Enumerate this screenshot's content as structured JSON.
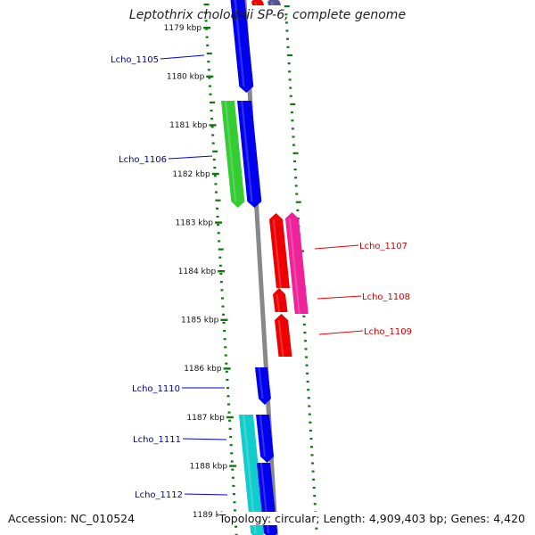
{
  "title": "Leptothrix cholodnii SP-6, complete genome",
  "footer": {
    "accession": "Accession: NC_010524",
    "topology": "Topology: circular; Length: 4,909,403 bp; Genes: 4,420"
  },
  "colors": {
    "forward_gene": "#0000ee",
    "forward_gene_alt_green": "#33cc33",
    "forward_gene_alt_cyan": "#11cccc",
    "reverse_gene": "#ee0000",
    "reverse_gene_alt_magenta": "#ee2299",
    "backbone": "#888888",
    "ticks": "#117711",
    "label_forward": "#000099",
    "label_reverse": "#cc0000"
  },
  "kbp_ticks": [
    "1179 kbp",
    "1180 kbp",
    "1181 kbp",
    "1182 kbp",
    "1183 kbp",
    "1184 kbp",
    "1185 kbp",
    "1186 kbp",
    "1187 kbp",
    "1188 kbp",
    "1189 kbp"
  ],
  "gene_labels": [
    {
      "text": "Lcho_1105",
      "strand": "forward"
    },
    {
      "text": "Lcho_1106",
      "strand": "forward"
    },
    {
      "text": "Lcho_1107",
      "strand": "reverse"
    },
    {
      "text": "Lcho_1108",
      "strand": "reverse"
    },
    {
      "text": "Lcho_1109",
      "strand": "reverse"
    },
    {
      "text": "Lcho_1110",
      "strand": "forward"
    },
    {
      "text": "Lcho_1111",
      "strand": "forward"
    },
    {
      "text": "Lcho_1112",
      "strand": "forward"
    }
  ]
}
